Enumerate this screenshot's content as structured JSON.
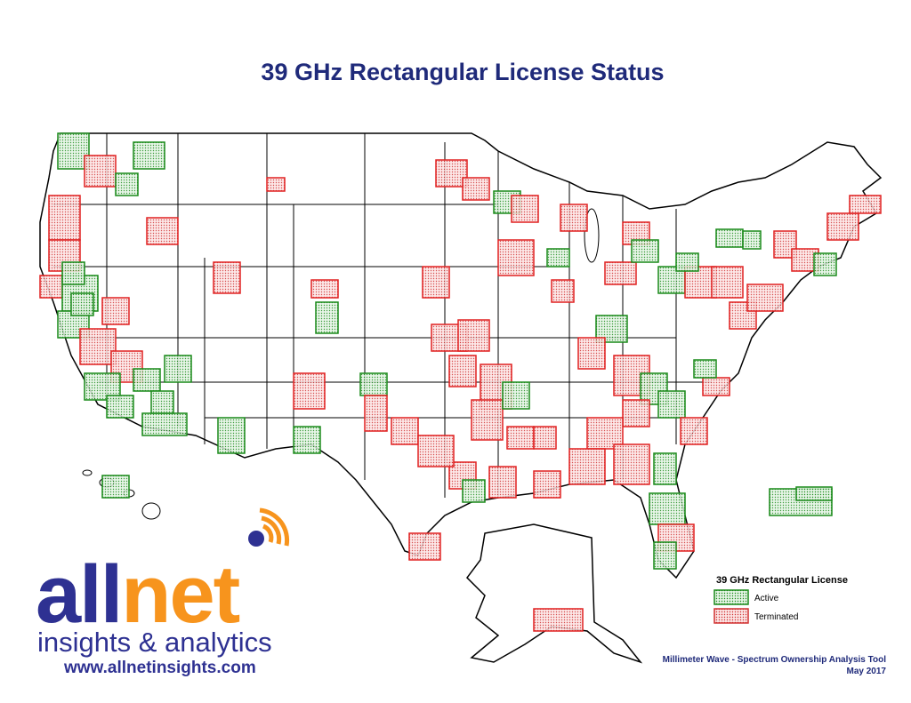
{
  "title": "39 GHz Rectangular License Status",
  "legend": {
    "title": "39 GHz Rectangular License",
    "items": [
      {
        "label": "Active"
      },
      {
        "label": "Terminated"
      }
    ]
  },
  "footer": {
    "tool": "Millimeter Wave - Spectrum Ownership Analysis Tool",
    "date": "May 2017"
  },
  "logo": {
    "name_part1": "all",
    "name_part2": "net",
    "tagline": "insights & analytics",
    "url": "www.allnetinsights.com"
  }
}
